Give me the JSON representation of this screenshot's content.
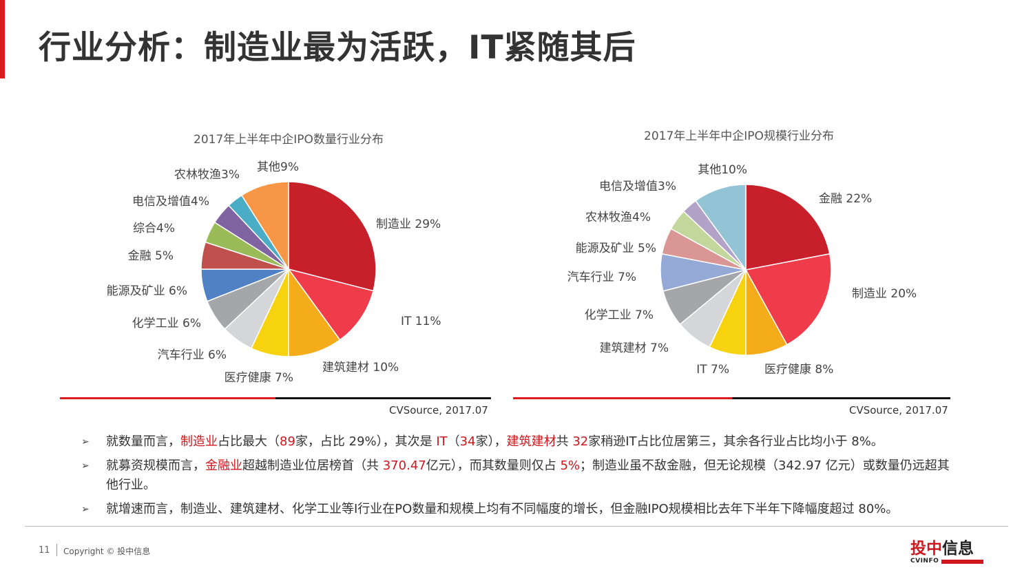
{
  "title": "行业分析：制造业最为活跃，IT紧随其后",
  "chart_data": [
    {
      "type": "pie",
      "title": "2017年上半年中企IPO数量行业分布",
      "slices": [
        {
          "label": "制造业 29%",
          "value": 29,
          "color": "#c8202a"
        },
        {
          "label": "IT 11%",
          "value": 11,
          "color": "#ef3b4a"
        },
        {
          "label": "建筑建材 10%",
          "value": 10,
          "color": "#f5ac1b"
        },
        {
          "label": "医疗健康 7%",
          "value": 7,
          "color": "#f6d30e"
        },
        {
          "label": "汽车行业 6%",
          "value": 6,
          "color": "#d5d6d8"
        },
        {
          "label": "化学工业 6%",
          "value": 6,
          "color": "#a5a6aa"
        },
        {
          "label": "能源及矿业 6%",
          "value": 6,
          "color": "#4f81c4"
        },
        {
          "label": "金融 5%",
          "value": 5,
          "color": "#c0504d"
        },
        {
          "label": "综合4%",
          "value": 4,
          "color": "#9bbb59"
        },
        {
          "label": "电信及增值4%",
          "value": 4,
          "color": "#8064a2"
        },
        {
          "label": "农林牧渔3%",
          "value": 3,
          "color": "#4bacc6"
        },
        {
          "label": "其他9%",
          "value": 9,
          "color": "#f79646"
        }
      ],
      "source": "CVSource, 2017.07"
    },
    {
      "type": "pie",
      "title": "2017年上半年中企IPO规模行业分布",
      "slices": [
        {
          "label": "金融 22%",
          "value": 22,
          "color": "#c8202a"
        },
        {
          "label": "制造业 20%",
          "value": 20,
          "color": "#ef3b4a"
        },
        {
          "label": "医疗健康 8%",
          "value": 8,
          "color": "#f5ac1b"
        },
        {
          "label": "IT 7%",
          "value": 7,
          "color": "#f6d30e"
        },
        {
          "label": "建筑建材 7%",
          "value": 7,
          "color": "#d5d6d8"
        },
        {
          "label": "化学工业 7%",
          "value": 7,
          "color": "#a5a6aa"
        },
        {
          "label": "汽车行业 7%",
          "value": 7,
          "color": "#95a9d6"
        },
        {
          "label": "能源及矿业 5%",
          "value": 5,
          "color": "#d99694"
        },
        {
          "label": "农林牧渔4%",
          "value": 4,
          "color": "#c3d69b"
        },
        {
          "label": "电信及增值3%",
          "value": 3,
          "color": "#b3a2c7"
        },
        {
          "label": "其他10%",
          "value": 10,
          "color": "#92c4d6"
        }
      ],
      "source": "CVSource, 2017.07"
    }
  ],
  "bullets": [
    [
      {
        "t": "就数量而言，"
      },
      {
        "t": "制造业",
        "hl": true
      },
      {
        "t": "占比最大（"
      },
      {
        "t": "89",
        "hl": true
      },
      {
        "t": "家，占比 29%），其次是 "
      },
      {
        "t": "IT",
        "hl": true
      },
      {
        "t": "（"
      },
      {
        "t": "34",
        "hl": true
      },
      {
        "t": "家），"
      },
      {
        "t": "建筑建材",
        "hl": true
      },
      {
        "t": "共 "
      },
      {
        "t": "32",
        "hl": true
      },
      {
        "t": "家稍逊IT占比位居第三，其余各行业占比均小于 8%。"
      }
    ],
    [
      {
        "t": "就募资规模而言，"
      },
      {
        "t": "金融业",
        "hl": true
      },
      {
        "t": "超越制造业位居榜首（共 "
      },
      {
        "t": "370.47",
        "hl": true
      },
      {
        "t": "亿元），而其数量则仅占 "
      },
      {
        "t": "5%",
        "hl": true
      },
      {
        "t": "；制造业虽不敌金融，但无论规模（342.97 亿元）或数量仍远超其他行业。"
      }
    ],
    [
      {
        "t": "就增速而言，制造业、建筑建材、化学工业等I行业在PO数量和规模上均有不同幅度的增长，但金融IPO规模相比去年下半年下降幅度超过 80%。"
      }
    ]
  ],
  "bullet_symbol": "➢",
  "footer": {
    "page_number": "11",
    "copyright": "Copyright © 投中信息"
  },
  "logo": {
    "cn_red": "投中",
    "cn_dark": "信息",
    "en": "CVINFO"
  },
  "colors": {
    "accent_red": "#e0191f",
    "highlight_red": "#d0161d",
    "rule_black": "#111111"
  }
}
